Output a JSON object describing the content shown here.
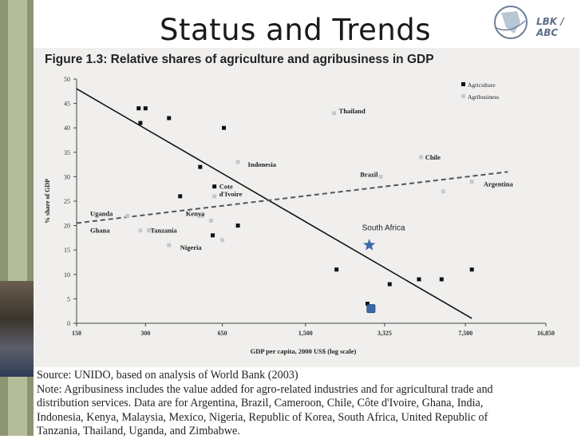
{
  "slide": {
    "title": "Status and Trends",
    "logo_text": "LBK / ABC"
  },
  "chart_data": {
    "type": "scatter",
    "title": "Figure 1.3: Relative shares of agriculture and agribusiness in GDP",
    "xlabel": "GDP per capita, 2000 US$ (log scale)",
    "ylabel": "% share of GDP",
    "x_scale": "log",
    "x_ticks": [
      {
        "value": 150,
        "label": "150"
      },
      {
        "value": 300,
        "label": "300"
      },
      {
        "value": 650,
        "label": "650"
      },
      {
        "value": 1500,
        "label": "1,500"
      },
      {
        "value": 3325,
        "label": "3,325"
      },
      {
        "value": 7500,
        "label": "7,500"
      },
      {
        "value": 16850,
        "label": "16,850"
      }
    ],
    "y_ticks": [
      0,
      5,
      10,
      15,
      20,
      25,
      30,
      35,
      40,
      45,
      50
    ],
    "xlim": [
      150,
      16850
    ],
    "ylim": [
      0,
      50
    ],
    "legend_position": "top-right",
    "series": [
      {
        "name": "Agriculture",
        "color": "#111111",
        "points": [
          {
            "x": 280,
            "y": 44
          },
          {
            "x": 300,
            "y": 44
          },
          {
            "x": 380,
            "y": 42
          },
          {
            "x": 660,
            "y": 40
          },
          {
            "x": 285,
            "y": 41
          },
          {
            "x": 520,
            "y": 32
          },
          {
            "x": 425,
            "y": 26
          },
          {
            "x": 600,
            "y": 28
          },
          {
            "x": 590,
            "y": 18
          },
          {
            "x": 760,
            "y": 20
          },
          {
            "x": 2050,
            "y": 11
          },
          {
            "x": 3500,
            "y": 8
          },
          {
            "x": 4700,
            "y": 9
          },
          {
            "x": 5900,
            "y": 9
          },
          {
            "x": 8000,
            "y": 11
          },
          {
            "x": 2800,
            "y": 4
          }
        ]
      },
      {
        "name": "Agribusiness",
        "color": "#c8c8c8",
        "points": [
          {
            "x": 2000,
            "y": 43
          },
          {
            "x": 4800,
            "y": 34
          },
          {
            "x": 3200,
            "y": 30
          },
          {
            "x": 8000,
            "y": 29
          },
          {
            "x": 6000,
            "y": 27
          },
          {
            "x": 760,
            "y": 33
          },
          {
            "x": 600,
            "y": 26
          },
          {
            "x": 650,
            "y": 17
          },
          {
            "x": 310,
            "y": 19
          },
          {
            "x": 285,
            "y": 19
          },
          {
            "x": 380,
            "y": 16
          },
          {
            "x": 530,
            "y": 22
          },
          {
            "x": 580,
            "y": 21
          },
          {
            "x": 250,
            "y": 22
          }
        ]
      }
    ],
    "highlights": [
      {
        "name": "South Africa",
        "x": 2850,
        "y": 16,
        "shape": "star",
        "color": "#3b6aa8"
      },
      {
        "name": "",
        "x": 2900,
        "y": 3,
        "shape": "square",
        "color": "#3b6aa8"
      }
    ],
    "trend_lines": [
      {
        "name": "Agriculture",
        "style": "solid",
        "from": {
          "x": 150,
          "y": 48
        },
        "to": {
          "x": 8000,
          "y": 1
        }
      },
      {
        "name": "Agribusiness",
        "style": "dashed",
        "from": {
          "x": 150,
          "y": 20.5
        },
        "to": {
          "x": 11500,
          "y": 31
        }
      }
    ],
    "country_labels": [
      {
        "text": "Thailand",
        "x": 2100,
        "y": 43.5
      },
      {
        "text": "Indonesia",
        "x": 840,
        "y": 32.5
      },
      {
        "text": "Chile",
        "x": 5000,
        "y": 34
      },
      {
        "text": "Brazil",
        "x": 2600,
        "y": 30.5
      },
      {
        "text": "Argentina",
        "x": 9000,
        "y": 28.5
      },
      {
        "text": "Cote",
        "x": 630,
        "y": 28
      },
      {
        "text": "d'Ivoire",
        "x": 630,
        "y": 26.5
      },
      {
        "text": "Uganda",
        "x": 172,
        "y": 22.5
      },
      {
        "text": "Kenya",
        "x": 450,
        "y": 22.5
      },
      {
        "text": "Ghana",
        "x": 172,
        "y": 19
      },
      {
        "text": "Tanzania",
        "x": 315,
        "y": 19
      },
      {
        "text": "Nigeria",
        "x": 425,
        "y": 15.5
      },
      {
        "text": "South Africa",
        "x": 2650,
        "y": 19.5
      }
    ]
  },
  "source_note": {
    "source": "Source: UNIDO, based on analysis of World Bank (2003)",
    "note_lines": [
      "Note: Agribusiness includes the value added for agro-related industries and for agricultural trade and",
      "distribution services. Data are for Argentina, Brazil, Cameroon, Chile, Côte d'Ivoire, Ghana, India,",
      "Indonesia, Kenya, Malaysia, Mexico, Nigeria, Republic of Korea, South Africa, United Republic of",
      "Tanzania, Thailand, Uganda, and Zimbabwe."
    ]
  }
}
